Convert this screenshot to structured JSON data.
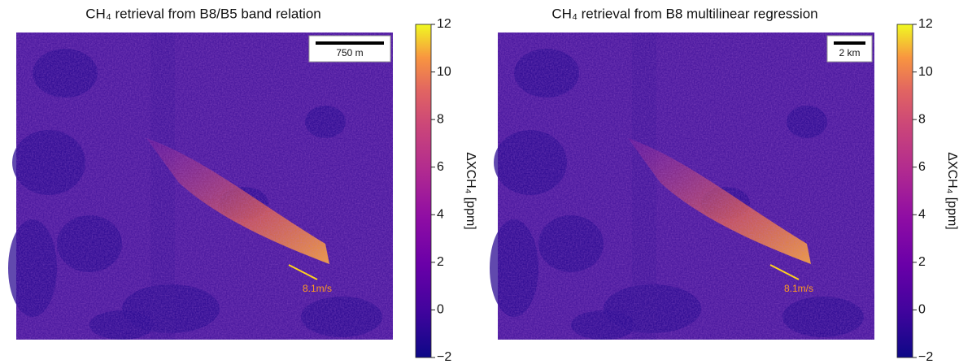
{
  "chart_data": [
    {
      "type": "heatmap",
      "title": "CH₄ retrieval from B8/B5 band relation",
      "colorbar_label": "ΔXCH₄ [ppm]",
      "colormap": "plasma",
      "clim": [
        -2,
        12
      ],
      "cticks": [
        {
          "value": -2,
          "label": "−2"
        },
        0,
        2,
        4,
        6,
        8,
        10,
        12
      ],
      "scale_bar": "750 m",
      "wind_label": "8.1m/s"
    },
    {
      "type": "heatmap",
      "title": "CH₄ retrieval from B8 multilinear regression",
      "colorbar_label": "ΔXCH₄ [ppm]",
      "colormap": "plasma",
      "clim": [
        -2,
        12
      ],
      "cticks": [
        {
          "value": -2,
          "label": "−2"
        },
        0,
        2,
        4,
        6,
        8,
        10,
        12
      ],
      "scale_bar": "2 km",
      "wind_label": "8.1m/s"
    }
  ]
}
